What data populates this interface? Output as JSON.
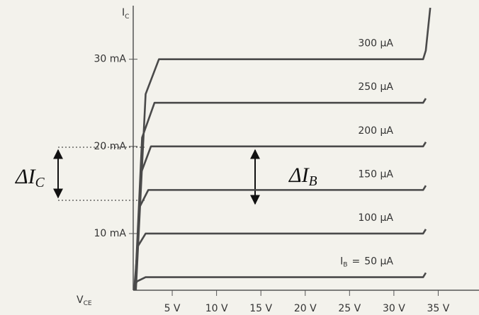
{
  "chart_data": {
    "type": "line",
    "y_label": {
      "main": "I",
      "sub": "C"
    },
    "x_label": {
      "main": "V",
      "sub": "CE"
    },
    "xlim": [
      0.6,
      39.6
    ],
    "ylim": [
      3.5,
      35.9
    ],
    "xticks": [
      {
        "value": 5,
        "label": "5 V"
      },
      {
        "value": 10,
        "label": "10 V"
      },
      {
        "value": 15,
        "label": "15 V"
      },
      {
        "value": 20,
        "label": "20 V"
      },
      {
        "value": 25,
        "label": "25 V"
      },
      {
        "value": 30,
        "label": "30 V"
      },
      {
        "value": 35,
        "label": "35 V"
      }
    ],
    "yticks": [
      {
        "value": 10,
        "label": "10 mA"
      },
      {
        "value": 20,
        "label": "20 mA"
      },
      {
        "value": 30,
        "label": "30 mA"
      }
    ],
    "color": "#4a4a4a",
    "series": [
      {
        "name": "300 µA",
        "x": [
          0.9,
          2,
          3.5,
          33.3,
          33.6,
          34.1
        ],
        "values": [
          3.5,
          26,
          30,
          30,
          31,
          35.9
        ]
      },
      {
        "name": "250 µA",
        "x": [
          0.8,
          1.6,
          3,
          33.3,
          33.6
        ],
        "values": [
          3.5,
          21,
          25,
          25,
          25.5
        ]
      },
      {
        "name": "200 µA",
        "x": [
          0.8,
          1.5,
          2.6,
          33.3,
          33.6
        ],
        "values": [
          3.5,
          17,
          20,
          20,
          20.5
        ]
      },
      {
        "name": "150 µA",
        "x": [
          0.8,
          1.3,
          2.3,
          33.3,
          33.6
        ],
        "values": [
          3.5,
          13,
          15,
          15,
          15.5
        ]
      },
      {
        "name": "100 µA",
        "x": [
          0.7,
          1.1,
          2,
          33.3,
          33.6
        ],
        "values": [
          3.5,
          8.5,
          10,
          10,
          10.5
        ]
      },
      {
        "name": "50 µA",
        "x": [
          0.7,
          1,
          2,
          33.3,
          33.6
        ],
        "values": [
          3.5,
          4.5,
          5,
          5,
          5.5
        ]
      }
    ],
    "last_label_prefix": {
      "main": "I",
      "sub": "B",
      "sign": "="
    },
    "annotations": [
      {
        "main": "ΔI",
        "sub": "C"
      },
      {
        "main": "ΔI",
        "sub": "B"
      }
    ]
  }
}
